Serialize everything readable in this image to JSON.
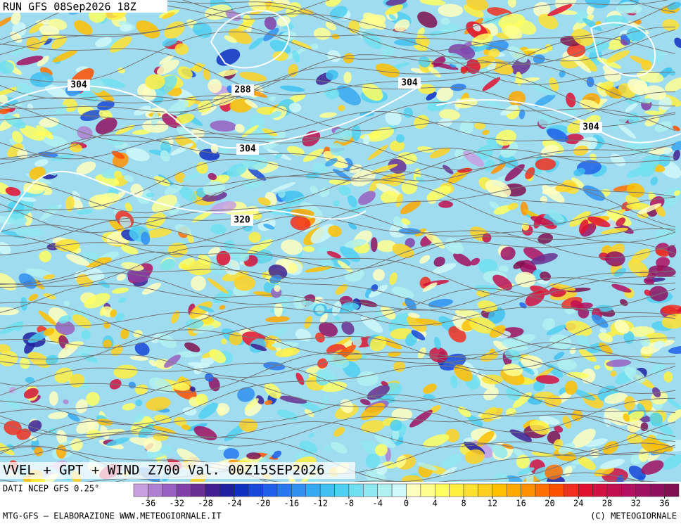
{
  "header": {
    "run": "RUN GFS 08Sep2026 18Z"
  },
  "contour_labels": [
    304,
    288,
    304,
    304,
    304,
    320
  ],
  "title": "VVEL + GPT + WIND Z700 Val. 00Z15SEP2026",
  "colorbar": {
    "range": [
      -38,
      38
    ],
    "ticks": [
      -36,
      -32,
      -28,
      -24,
      -20,
      -16,
      -12,
      -8,
      -4,
      0,
      4,
      8,
      12,
      16,
      20,
      24,
      28,
      32,
      36
    ],
    "colors": [
      "#c8a0e0",
      "#b080d0",
      "#9860c0",
      "#8040a8",
      "#683090",
      "#402090",
      "#2020a0",
      "#1030c0",
      "#1848d8",
      "#2060e8",
      "#2878f0",
      "#3090f0",
      "#38a8f0",
      "#40c0f0",
      "#50d0f0",
      "#70e0f0",
      "#90e8f0",
      "#b0f0f0",
      "#d0f8f8",
      "#ffffc0",
      "#ffff90",
      "#ffff60",
      "#fff040",
      "#ffe030",
      "#ffd020",
      "#ffc000",
      "#ffa800",
      "#ff9000",
      "#ff7000",
      "#ff5000",
      "#f03020",
      "#e01030",
      "#d01040",
      "#c01050",
      "#b01060",
      "#a01060",
      "#901060",
      "#801050"
    ]
  },
  "footer": {
    "source": "DATI NCEP GFS 0.25°",
    "credit": "MTG-GFS — ELABORAZIONE WWW.METEOGIORNALE.IT",
    "copyright": "(C) METEOGIORNALE"
  }
}
